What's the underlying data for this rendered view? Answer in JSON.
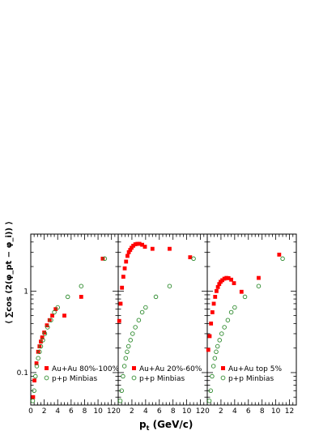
{
  "xaxis": {
    "label_main": "p",
    "label_sub": "t",
    "label_unit": " (GeV/c)"
  },
  "yaxis": {
    "label": "⟨ ∑cos (2(φ_pt − φ_i)) ⟩"
  },
  "colors": {
    "auau": "#ff0000",
    "pp": "#2e8b2e",
    "axis": "#000000"
  },
  "chart_data": [
    {
      "type": "scatter",
      "panel": "left",
      "x_ticks": [
        "0",
        "2",
        "4",
        "6",
        "8",
        "10",
        "12"
      ],
      "y_ticks": [
        "0.1",
        "1"
      ],
      "xlim": [
        0,
        13
      ],
      "ylim": [
        0.04,
        5
      ],
      "log_y": true,
      "legend": "bottom-right",
      "series": [
        {
          "name": "Au+Au 80%-100%",
          "marker": "filled-square",
          "color": "#ff0000",
          "points": [
            {
              "x": 0.35,
              "y": 0.05
            },
            {
              "x": 0.55,
              "y": 0.08
            },
            {
              "x": 0.85,
              "y": 0.13
            },
            {
              "x": 1.1,
              "y": 0.18
            },
            {
              "x": 1.3,
              "y": 0.21
            },
            {
              "x": 1.5,
              "y": 0.24
            },
            {
              "x": 1.7,
              "y": 0.27
            },
            {
              "x": 2.0,
              "y": 0.31
            },
            {
              "x": 2.4,
              "y": 0.38
            },
            {
              "x": 2.8,
              "y": 0.44
            },
            {
              "x": 3.2,
              "y": 0.5
            },
            {
              "x": 3.7,
              "y": 0.6
            },
            {
              "x": 5.0,
              "y": 0.5
            },
            {
              "x": 7.5,
              "y": 0.85
            },
            {
              "x": 10.7,
              "y": 2.5
            }
          ]
        },
        {
          "name": "p+p Minbias",
          "marker": "open-circle",
          "color": "#2e8b2e",
          "points": [
            {
              "x": 0.3,
              "y": 0.045
            },
            {
              "x": 0.5,
              "y": 0.06
            },
            {
              "x": 0.7,
              "y": 0.09
            },
            {
              "x": 0.9,
              "y": 0.12
            },
            {
              "x": 1.1,
              "y": 0.15
            },
            {
              "x": 1.3,
              "y": 0.18
            },
            {
              "x": 1.5,
              "y": 0.21
            },
            {
              "x": 1.8,
              "y": 0.25
            },
            {
              "x": 2.1,
              "y": 0.3
            },
            {
              "x": 2.5,
              "y": 0.36
            },
            {
              "x": 3.0,
              "y": 0.44
            },
            {
              "x": 3.5,
              "y": 0.55
            },
            {
              "x": 4.0,
              "y": 0.63
            },
            {
              "x": 5.5,
              "y": 0.85
            },
            {
              "x": 7.5,
              "y": 1.15
            },
            {
              "x": 11.0,
              "y": 2.5
            }
          ]
        }
      ]
    },
    {
      "type": "scatter",
      "panel": "middle",
      "x_ticks": [
        "0",
        "2",
        "4",
        "6",
        "8",
        "10",
        "12"
      ],
      "xlim": [
        0,
        13
      ],
      "ylim": [
        0.04,
        5
      ],
      "log_y": true,
      "legend": "bottom-right",
      "series": [
        {
          "name": "Au+Au 20%-60%",
          "marker": "filled-square",
          "color": "#ff0000",
          "points": [
            {
              "x": 0.15,
              "y": 0.43
            },
            {
              "x": 0.35,
              "y": 0.7
            },
            {
              "x": 0.55,
              "y": 1.1
            },
            {
              "x": 0.75,
              "y": 1.5
            },
            {
              "x": 0.95,
              "y": 1.9
            },
            {
              "x": 1.15,
              "y": 2.3
            },
            {
              "x": 1.35,
              "y": 2.7
            },
            {
              "x": 1.55,
              "y": 3.0
            },
            {
              "x": 1.75,
              "y": 3.2
            },
            {
              "x": 1.95,
              "y": 3.4
            },
            {
              "x": 2.2,
              "y": 3.6
            },
            {
              "x": 2.5,
              "y": 3.75
            },
            {
              "x": 2.8,
              "y": 3.8
            },
            {
              "x": 3.1,
              "y": 3.8
            },
            {
              "x": 3.5,
              "y": 3.7
            },
            {
              "x": 3.9,
              "y": 3.5
            },
            {
              "x": 5.0,
              "y": 3.3
            },
            {
              "x": 7.5,
              "y": 3.3
            },
            {
              "x": 10.5,
              "y": 2.6
            }
          ]
        },
        {
          "name": "p+p Minbias",
          "marker": "open-circle",
          "color": "#2e8b2e",
          "points": [
            {
              "x": 0.3,
              "y": 0.045
            },
            {
              "x": 0.5,
              "y": 0.06
            },
            {
              "x": 0.7,
              "y": 0.09
            },
            {
              "x": 0.9,
              "y": 0.12
            },
            {
              "x": 1.1,
              "y": 0.15
            },
            {
              "x": 1.3,
              "y": 0.18
            },
            {
              "x": 1.5,
              "y": 0.21
            },
            {
              "x": 1.8,
              "y": 0.25
            },
            {
              "x": 2.1,
              "y": 0.3
            },
            {
              "x": 2.5,
              "y": 0.36
            },
            {
              "x": 3.0,
              "y": 0.44
            },
            {
              "x": 3.5,
              "y": 0.55
            },
            {
              "x": 4.0,
              "y": 0.63
            },
            {
              "x": 5.5,
              "y": 0.85
            },
            {
              "x": 7.5,
              "y": 1.15
            },
            {
              "x": 11.0,
              "y": 2.5
            }
          ]
        }
      ]
    },
    {
      "type": "scatter",
      "panel": "right",
      "x_ticks": [
        "0",
        "2",
        "4",
        "6",
        "8",
        "10",
        "12"
      ],
      "xlim": [
        0,
        13
      ],
      "ylim": [
        0.04,
        5
      ],
      "log_y": true,
      "legend": "bottom-right",
      "series": [
        {
          "name": "Au+Au top 5%",
          "marker": "filled-square",
          "color": "#ff0000",
          "points": [
            {
              "x": 0.15,
              "y": 0.19
            },
            {
              "x": 0.35,
              "y": 0.28
            },
            {
              "x": 0.55,
              "y": 0.4
            },
            {
              "x": 0.75,
              "y": 0.55
            },
            {
              "x": 0.95,
              "y": 0.7
            },
            {
              "x": 1.15,
              "y": 0.85
            },
            {
              "x": 1.35,
              "y": 1.0
            },
            {
              "x": 1.55,
              "y": 1.12
            },
            {
              "x": 1.75,
              "y": 1.22
            },
            {
              "x": 1.95,
              "y": 1.3
            },
            {
              "x": 2.2,
              "y": 1.36
            },
            {
              "x": 2.5,
              "y": 1.42
            },
            {
              "x": 2.8,
              "y": 1.45
            },
            {
              "x": 3.1,
              "y": 1.44
            },
            {
              "x": 3.5,
              "y": 1.38
            },
            {
              "x": 3.9,
              "y": 1.25
            },
            {
              "x": 5.0,
              "y": 0.98
            },
            {
              "x": 7.5,
              "y": 1.45
            },
            {
              "x": 10.5,
              "y": 2.8
            }
          ]
        },
        {
          "name": "p+p Minbias",
          "marker": "open-circle",
          "color": "#2e8b2e",
          "points": [
            {
              "x": 0.3,
              "y": 0.045
            },
            {
              "x": 0.5,
              "y": 0.06
            },
            {
              "x": 0.7,
              "y": 0.09
            },
            {
              "x": 0.9,
              "y": 0.12
            },
            {
              "x": 1.1,
              "y": 0.15
            },
            {
              "x": 1.3,
              "y": 0.18
            },
            {
              "x": 1.5,
              "y": 0.21
            },
            {
              "x": 1.8,
              "y": 0.25
            },
            {
              "x": 2.1,
              "y": 0.3
            },
            {
              "x": 2.5,
              "y": 0.36
            },
            {
              "x": 3.0,
              "y": 0.44
            },
            {
              "x": 3.5,
              "y": 0.55
            },
            {
              "x": 4.0,
              "y": 0.63
            },
            {
              "x": 5.5,
              "y": 0.85
            },
            {
              "x": 7.5,
              "y": 1.15
            },
            {
              "x": 11.0,
              "y": 2.5
            }
          ]
        }
      ]
    }
  ]
}
